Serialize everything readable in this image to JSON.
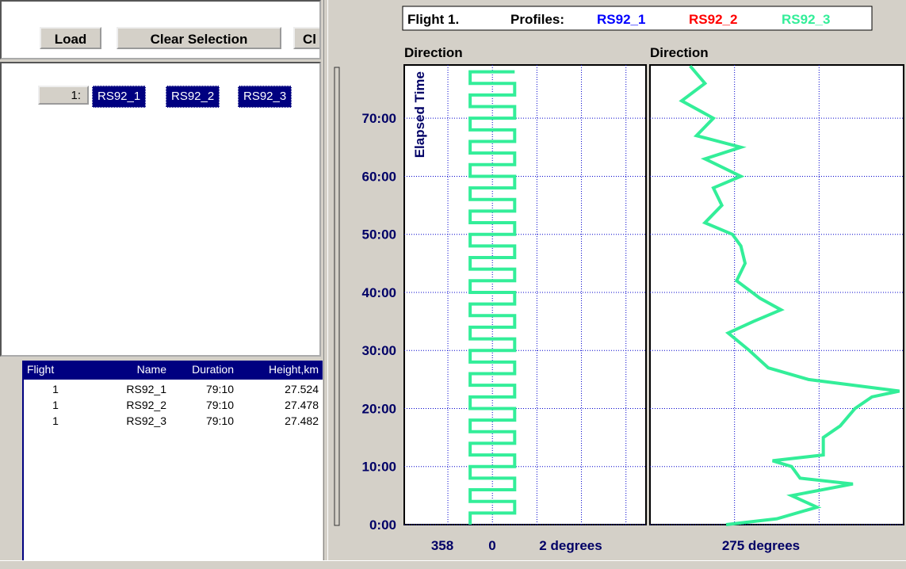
{
  "toolbar": {
    "buttons": [
      "Load",
      "Clear Selection",
      "Cl"
    ]
  },
  "flights": [
    {
      "label": "1:",
      "profiles": [
        "RS92_1",
        "RS92_2",
        "RS92_3"
      ]
    }
  ],
  "table": {
    "columns": [
      "Flight",
      "Name",
      "Duration",
      "Height,km"
    ],
    "rows": [
      [
        "1",
        "RS92_1",
        "79:10",
        "27.524"
      ],
      [
        "1",
        "RS92_2",
        "79:10",
        "27.478"
      ],
      [
        "1",
        "RS92_3",
        "79:10",
        "27.482"
      ]
    ]
  },
  "header": {
    "flight": "Flight 1.",
    "profiles_label": "Profiles:",
    "profiles": [
      {
        "name": "RS92_1",
        "color": "#0000ff"
      },
      {
        "name": "RS92_2",
        "color": "#ff0000"
      },
      {
        "name": "RS92_3",
        "color": "#33ee99"
      }
    ]
  },
  "chart_data": [
    {
      "type": "line",
      "title": "Direction",
      "ylabel": "Elapsed Time",
      "ylim": [
        0,
        79.17
      ],
      "yticks": [
        {
          "value": 0,
          "label": "0:00"
        },
        {
          "value": 10,
          "label": "10:00"
        },
        {
          "value": 20,
          "label": "20:00"
        },
        {
          "value": 30,
          "label": "30:00"
        },
        {
          "value": 40,
          "label": "40:00"
        },
        {
          "value": 50,
          "label": "50:00"
        },
        {
          "value": 60,
          "label": "60:00"
        },
        {
          "value": 70,
          "label": "70:00"
        }
      ],
      "xlim": [
        -1.98,
        3.45
      ],
      "xticks": [
        -1,
        0,
        1,
        2,
        3
      ],
      "x_labels": [
        "358",
        "0",
        "2 degrees"
      ],
      "grid": true,
      "series": [
        {
          "name": "RS92_3",
          "color": "#33ee99",
          "time": [
            0,
            2,
            4,
            6,
            8,
            10,
            12,
            14,
            16,
            18,
            20,
            22,
            24,
            26,
            28,
            30,
            32,
            34,
            36,
            38,
            40,
            42,
            44,
            46,
            48,
            50,
            52,
            54,
            56,
            58,
            60,
            62,
            64,
            66,
            68,
            70,
            72,
            74,
            76,
            78
          ],
          "values": [
            -0.5,
            0.5,
            -0.5,
            0.5,
            -0.5,
            0.5,
            -0.5,
            0.5,
            -0.5,
            0.5,
            -0.5,
            0.5,
            -0.5,
            0.5,
            -0.5,
            0.5,
            -0.5,
            0.5,
            -0.5,
            0.5,
            -0.5,
            0.5,
            -0.5,
            0.5,
            -0.5,
            0.5,
            -0.5,
            0.5,
            -0.5,
            0.5,
            -0.5,
            0.5,
            -0.5,
            0.5,
            -0.5,
            0.5,
            -0.5,
            0.5,
            -0.5,
            0.5
          ]
        }
      ]
    },
    {
      "type": "line",
      "title": "Direction",
      "ylim": [
        0,
        79.17
      ],
      "yticks": [
        0,
        10,
        20,
        30,
        40,
        50,
        60,
        70
      ],
      "xlim": [
        270,
        282
      ],
      "xticks": [
        274,
        278
      ],
      "x_labels": [
        "275 degrees"
      ],
      "grid": true,
      "series": [
        {
          "name": "RS92_3",
          "color": "#33ee99",
          "time": [
            0,
            1,
            3,
            5,
            7,
            8,
            10,
            11,
            12,
            15,
            17,
            20,
            22,
            23,
            25,
            27,
            30,
            33,
            35,
            37,
            39,
            42,
            45,
            48,
            50,
            52,
            55,
            58,
            60,
            63,
            65,
            67,
            70,
            73,
            76,
            79
          ],
          "values": [
            273.6,
            276.0,
            277.9,
            276.7,
            279.6,
            277.1,
            276.7,
            275.8,
            278.2,
            278.2,
            279.0,
            279.7,
            280.5,
            281.8,
            277.5,
            275.6,
            274.7,
            273.7,
            274.9,
            276.2,
            275.2,
            274.1,
            274.5,
            274.3,
            273.9,
            272.6,
            273.4,
            273.0,
            274.3,
            272.6,
            274.3,
            272.2,
            273.0,
            271.5,
            272.6,
            271.9
          ]
        }
      ]
    }
  ]
}
